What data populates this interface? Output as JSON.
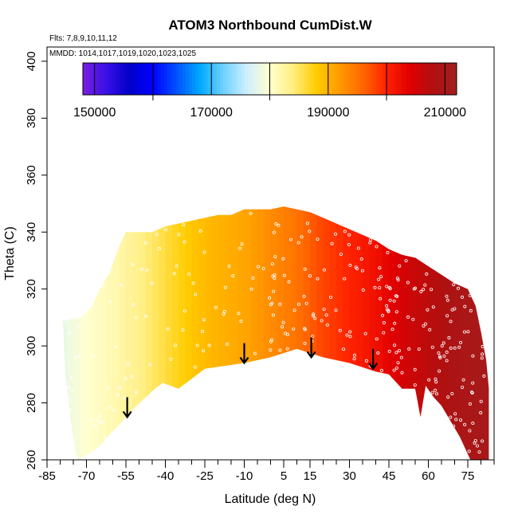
{
  "chart_data": {
    "type": "heatmap",
    "title": "ATOM3 Northbound CumDist.W",
    "subtitle_lines": [
      "Flts: 7,8,9,10,11,12",
      "MMDD: 1014,1017,1019,1020,1023,1025"
    ],
    "xlabel": "Latitude (deg N)",
    "ylabel": "Theta (C)",
    "xlim": [
      -85,
      85
    ],
    "ylim": [
      260,
      405
    ],
    "x_ticks": [
      -85,
      -70,
      -55,
      -40,
      -25,
      -10,
      5,
      15,
      30,
      45,
      60,
      75
    ],
    "y_ticks": [
      260,
      280,
      300,
      320,
      340,
      360,
      380,
      400
    ],
    "colorbar": {
      "min": 148000,
      "max": 212000,
      "ticks": [
        150000,
        170000,
        190000,
        210000
      ],
      "major_ticks": [
        160000,
        180000,
        200000
      ],
      "colors": [
        "#7a1fe0",
        "#3a10e8",
        "#0000c8",
        "#0000ff",
        "#0050ff",
        "#00a8ff",
        "#6ed0ff",
        "#cdeeff",
        "#ffffd0",
        "#ffee80",
        "#ffcc00",
        "#ff9900",
        "#ff6600",
        "#ff2200",
        "#e00000",
        "#b01010",
        "#a02020"
      ]
    },
    "upper_boundary": [
      [
        -72,
        310
      ],
      [
        -68,
        314
      ],
      [
        -65,
        320
      ],
      [
        -61,
        326
      ],
      [
        -58,
        334
      ],
      [
        -55,
        340
      ],
      [
        -45,
        340
      ],
      [
        -40,
        342
      ],
      [
        -30,
        344
      ],
      [
        -20,
        346
      ],
      [
        -15,
        346
      ],
      [
        -10,
        348
      ],
      [
        0,
        348
      ],
      [
        5,
        349
      ],
      [
        10,
        348
      ],
      [
        15,
        347
      ],
      [
        20,
        345
      ],
      [
        25,
        343
      ],
      [
        30,
        341
      ],
      [
        35,
        339
      ],
      [
        40,
        337
      ],
      [
        45,
        334
      ],
      [
        50,
        332
      ],
      [
        55,
        331
      ],
      [
        60,
        328
      ],
      [
        65,
        325
      ],
      [
        70,
        322
      ],
      [
        75,
        320
      ],
      [
        78,
        314
      ],
      [
        80,
        305
      ],
      [
        82,
        295
      ],
      [
        83,
        285
      ]
    ],
    "lower_boundary": [
      [
        -79,
        309
      ],
      [
        -78,
        290
      ],
      [
        -76,
        274
      ],
      [
        -74,
        262
      ],
      [
        -73,
        260
      ],
      [
        -66,
        264
      ],
      [
        -60,
        270
      ],
      [
        -52,
        278
      ],
      [
        -44,
        285
      ],
      [
        -41,
        287
      ],
      [
        -35,
        285
      ],
      [
        -25,
        292
      ],
      [
        -10,
        294
      ],
      [
        0,
        296
      ],
      [
        10,
        299
      ],
      [
        20,
        296
      ],
      [
        30,
        294
      ],
      [
        40,
        291
      ],
      [
        45,
        290
      ],
      [
        50,
        285
      ],
      [
        55,
        285
      ],
      [
        57,
        275
      ],
      [
        59,
        286
      ],
      [
        62,
        282
      ],
      [
        65,
        279
      ],
      [
        72,
        268
      ],
      [
        76,
        260
      ],
      [
        83,
        260
      ]
    ],
    "color_by_latitude": [
      [
        -80,
        178000
      ],
      [
        -70,
        180000
      ],
      [
        -60,
        181500
      ],
      [
        -50,
        183500
      ],
      [
        -40,
        186000
      ],
      [
        -30,
        188500
      ],
      [
        -20,
        190000
      ],
      [
        -10,
        191000
      ],
      [
        0,
        193000
      ],
      [
        10,
        195000
      ],
      [
        20,
        198000
      ],
      [
        30,
        200000
      ],
      [
        40,
        202000
      ],
      [
        50,
        205000
      ],
      [
        60,
        207000
      ],
      [
        70,
        209000
      ],
      [
        80,
        210000
      ]
    ],
    "arrows": [
      {
        "lat": -54.5,
        "from": 282,
        "to": 275
      },
      {
        "lat": -10,
        "from": 301,
        "to": 294
      },
      {
        "lat": 15.5,
        "from": 303,
        "to": 296
      },
      {
        "lat": 39,
        "from": 299,
        "to": 292
      }
    ]
  }
}
